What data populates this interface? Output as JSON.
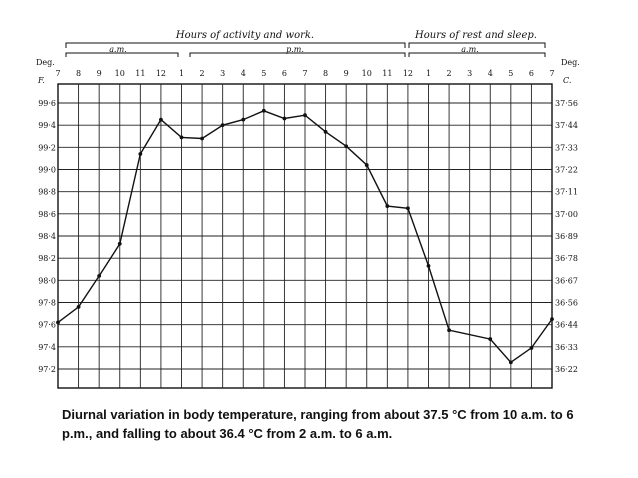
{
  "chart_data": {
    "type": "line",
    "title": "",
    "period_headers": [
      "Hours of activity and work.",
      "Hours of rest and sleep."
    ],
    "period_subheaders": [
      "a.m.",
      "p.m.",
      "a.m."
    ],
    "x_tick_labels": [
      "7",
      "8",
      "9",
      "10",
      "11",
      "12",
      "1",
      "2",
      "3",
      "4",
      "5",
      "6",
      "7",
      "8",
      "9",
      "10",
      "11",
      "12",
      "1",
      "2",
      "3",
      "4",
      "5",
      "6",
      "7"
    ],
    "left_axis_label": [
      "Deg.",
      "F."
    ],
    "right_axis_label": [
      "Deg.",
      "C."
    ],
    "y_ticks_f": [
      "99·6",
      "99·4",
      "99·2",
      "99·0",
      "98·8",
      "98·6",
      "98·4",
      "98·2",
      "98·0",
      "97·8",
      "97·6",
      "97·4",
      "97·2"
    ],
    "y_ticks_c": [
      "37·56",
      "37·44",
      "37·33",
      "37·22",
      "37·11",
      "37·00",
      "36·89",
      "36·78",
      "36·67",
      "36·56",
      "36·44",
      "36·33",
      "36·22"
    ],
    "ylim_f": [
      97.2,
      99.6
    ],
    "grid": true,
    "x_hours": [
      0,
      1,
      2,
      3,
      4,
      5,
      6,
      7,
      8,
      9,
      10,
      11,
      12,
      13,
      14,
      15,
      16,
      17,
      18,
      19,
      21,
      22,
      23,
      24
    ],
    "x_hour_note": "hour 0 = 7 a.m.",
    "values_f": [
      97.62,
      97.76,
      98.04,
      98.33,
      99.14,
      99.45,
      99.29,
      99.28,
      99.4,
      99.45,
      99.53,
      99.46,
      99.49,
      99.34,
      99.21,
      99.04,
      98.67,
      98.65,
      98.13,
      97.55,
      97.47,
      97.26,
      97.39,
      97.65
    ]
  },
  "caption": "Diurnal variation in body temperature, ranging from about 37.5 °C from 10 a.m. to 6 p.m., and falling to about 36.4 °C from 2 a.m. to 6 a.m."
}
